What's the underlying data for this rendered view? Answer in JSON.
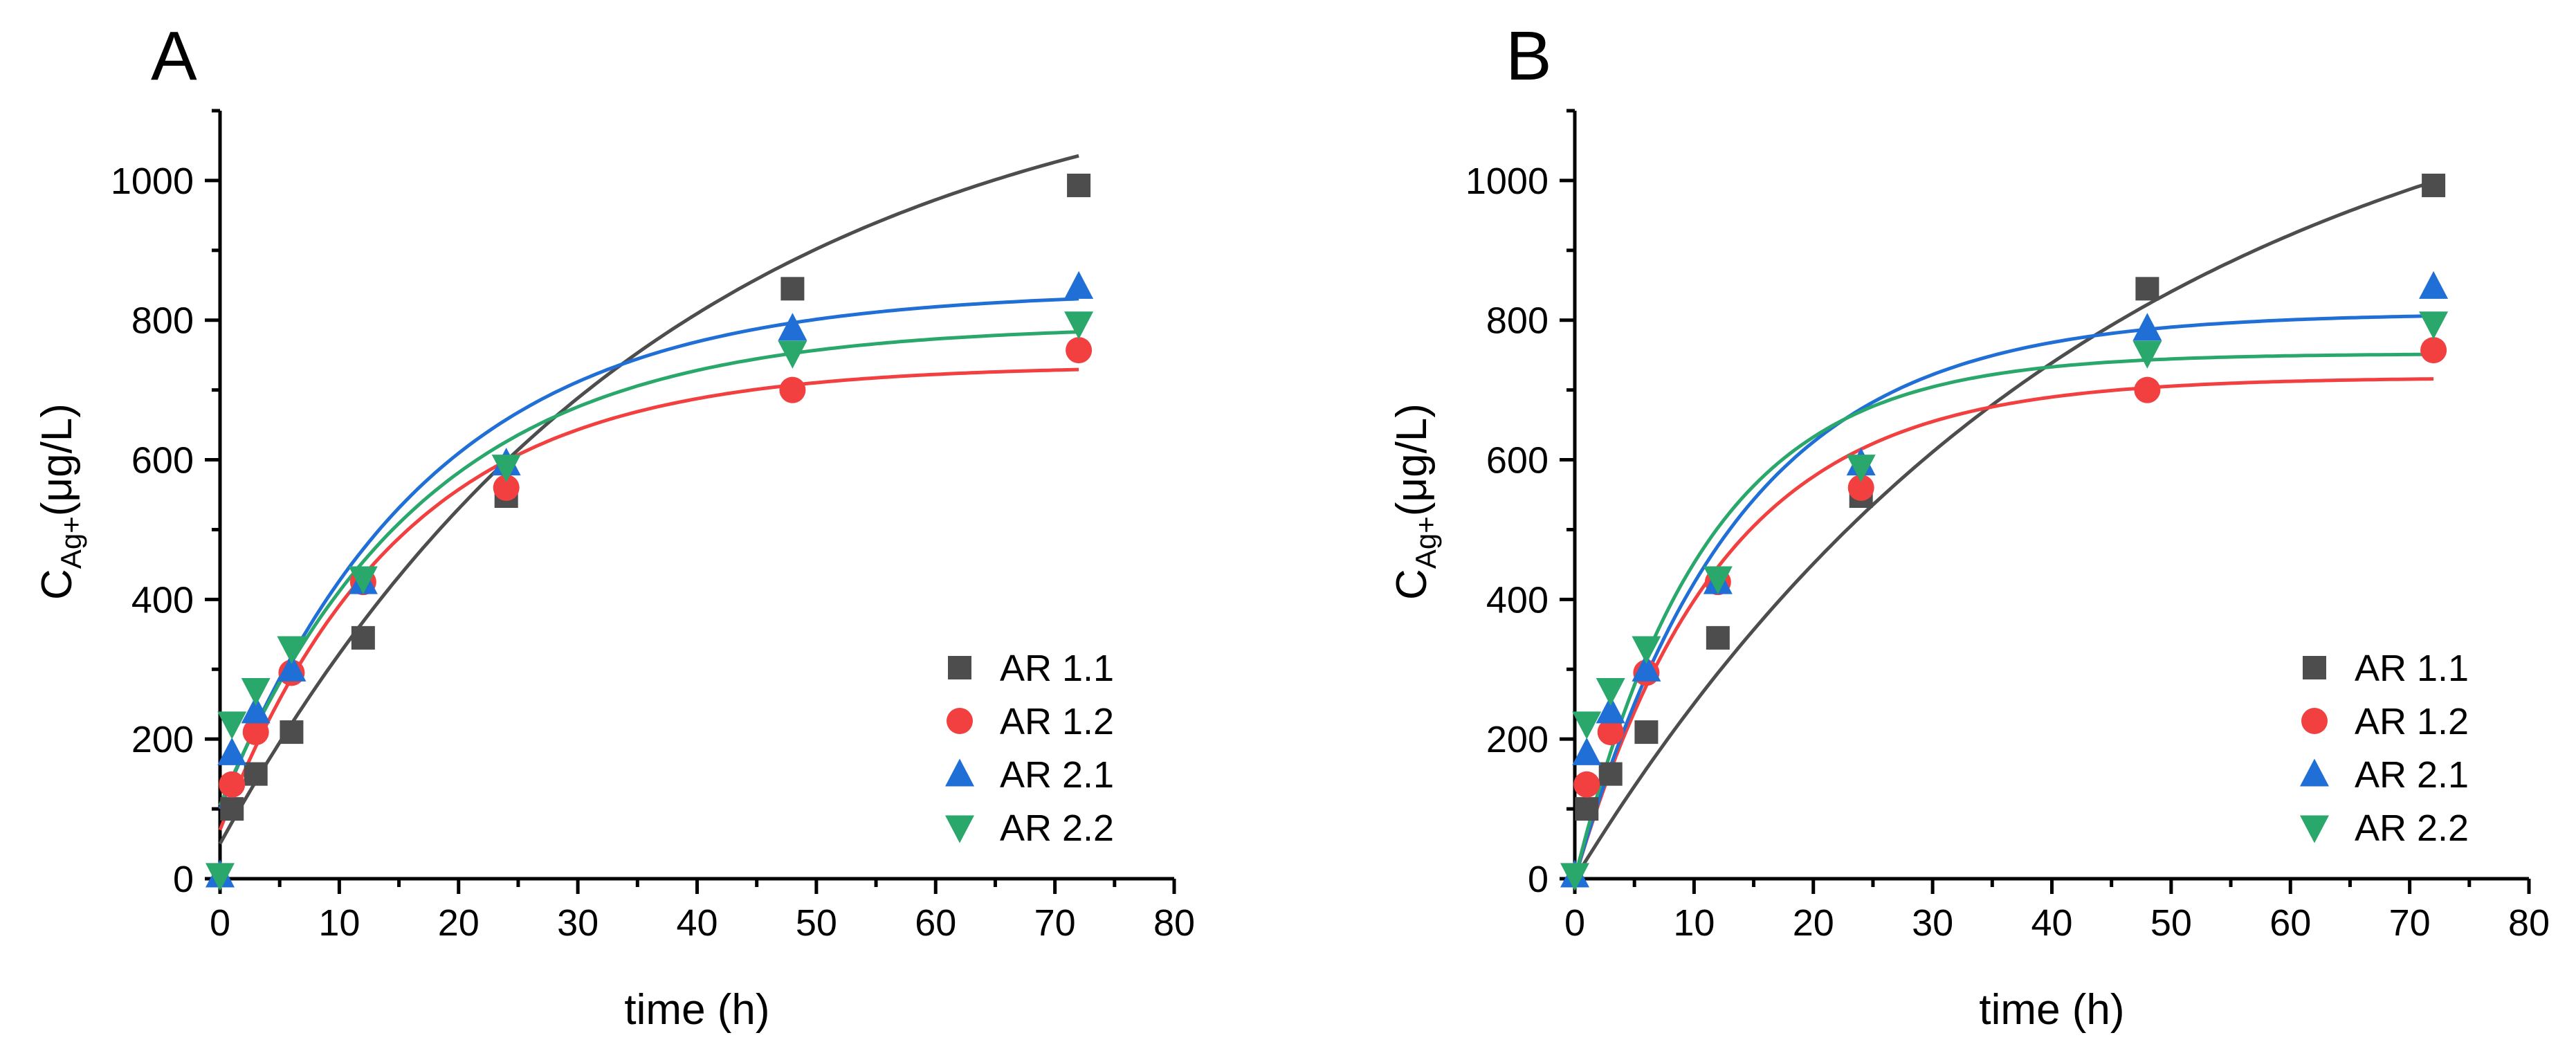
{
  "figure": {
    "description_free": true
  },
  "colors": {
    "AR 1.1": "#4d4d4d",
    "AR 1.2": "#f23f3f",
    "AR 2.1": "#1f6fd6",
    "AR 2.2": "#2aa86b"
  },
  "chart_data": [
    {
      "panel": "A",
      "type": "scatter",
      "title": "",
      "xlabel": "time (h)",
      "ylabel_main": "C",
      "ylabel_sub": "Ag+",
      "ylabel_rest": "(μg/L)",
      "xlim": [
        0,
        80
      ],
      "ylim": [
        0,
        1100
      ],
      "xticks": [
        0,
        10,
        20,
        30,
        40,
        50,
        60,
        70,
        80
      ],
      "yticks": [
        0,
        200,
        400,
        600,
        800,
        1000
      ],
      "legend_position": "bottom-right",
      "series": [
        {
          "name": "AR 1.1",
          "marker": "square",
          "x": [
            1,
            3,
            6,
            12,
            24,
            48,
            72
          ],
          "y": [
            100,
            150,
            210,
            345,
            548,
            845,
            993
          ],
          "fit": {
            "a": 1150,
            "k": 0.027,
            "b": 50
          }
        },
        {
          "name": "AR 1.2",
          "marker": "circle",
          "x": [
            1,
            3,
            6,
            12,
            24,
            48,
            72
          ],
          "y": [
            135,
            210,
            295,
            425,
            560,
            700,
            757
          ],
          "fit": {
            "a": 665,
            "k": 0.066,
            "b": 70
          }
        },
        {
          "name": "AR 2.1",
          "marker": "triangle-up",
          "x": [
            0,
            1,
            3,
            6,
            12,
            24,
            48,
            72
          ],
          "y": [
            5,
            180,
            240,
            300,
            425,
            595,
            788,
            848
          ],
          "fit": {
            "a": 742,
            "k": 0.058,
            "b": 100
          }
        },
        {
          "name": "AR 2.2",
          "marker": "triangle-down",
          "x": [
            0,
            1,
            3,
            6,
            12,
            24,
            48,
            72
          ],
          "y": [
            5,
            222,
            270,
            330,
            430,
            590,
            753,
            795
          ],
          "fit": {
            "a": 688,
            "k": 0.059,
            "b": 105
          }
        }
      ]
    },
    {
      "panel": "B",
      "type": "scatter",
      "title": "",
      "xlabel": "time (h)",
      "ylabel_main": "C",
      "ylabel_sub": "Ag+",
      "ylabel_rest": "(μg/L)",
      "xlim": [
        0,
        80
      ],
      "ylim": [
        0,
        1100
      ],
      "xticks": [
        0,
        10,
        20,
        30,
        40,
        50,
        60,
        70,
        80
      ],
      "yticks": [
        0,
        200,
        400,
        600,
        800,
        1000
      ],
      "legend_position": "bottom-right",
      "series": [
        {
          "name": "AR 1.1",
          "marker": "square",
          "x": [
            1,
            3,
            6,
            12,
            24,
            48,
            72
          ],
          "y": [
            100,
            150,
            210,
            345,
            548,
            845,
            993
          ],
          "fit": {
            "a": 1245,
            "k": 0.0225,
            "b": 0
          }
        },
        {
          "name": "AR 1.2",
          "marker": "circle",
          "x": [
            1,
            3,
            6,
            12,
            24,
            48,
            72
          ],
          "y": [
            135,
            210,
            295,
            425,
            560,
            700,
            757
          ],
          "fit": {
            "a": 718,
            "k": 0.081,
            "b": 0
          }
        },
        {
          "name": "AR 2.1",
          "marker": "triangle-up",
          "x": [
            0,
            1,
            3,
            6,
            12,
            24,
            48,
            72
          ],
          "y": [
            5,
            180,
            240,
            300,
            425,
            595,
            788,
            848
          ],
          "fit": {
            "a": 810,
            "k": 0.074,
            "b": 0
          }
        },
        {
          "name": "AR 2.2",
          "marker": "triangle-down",
          "x": [
            0,
            1,
            3,
            6,
            12,
            24,
            48,
            72
          ],
          "y": [
            5,
            222,
            270,
            330,
            430,
            590,
            753,
            795
          ],
          "fit": {
            "a": 752,
            "k": 0.092,
            "b": 0
          }
        }
      ]
    }
  ]
}
